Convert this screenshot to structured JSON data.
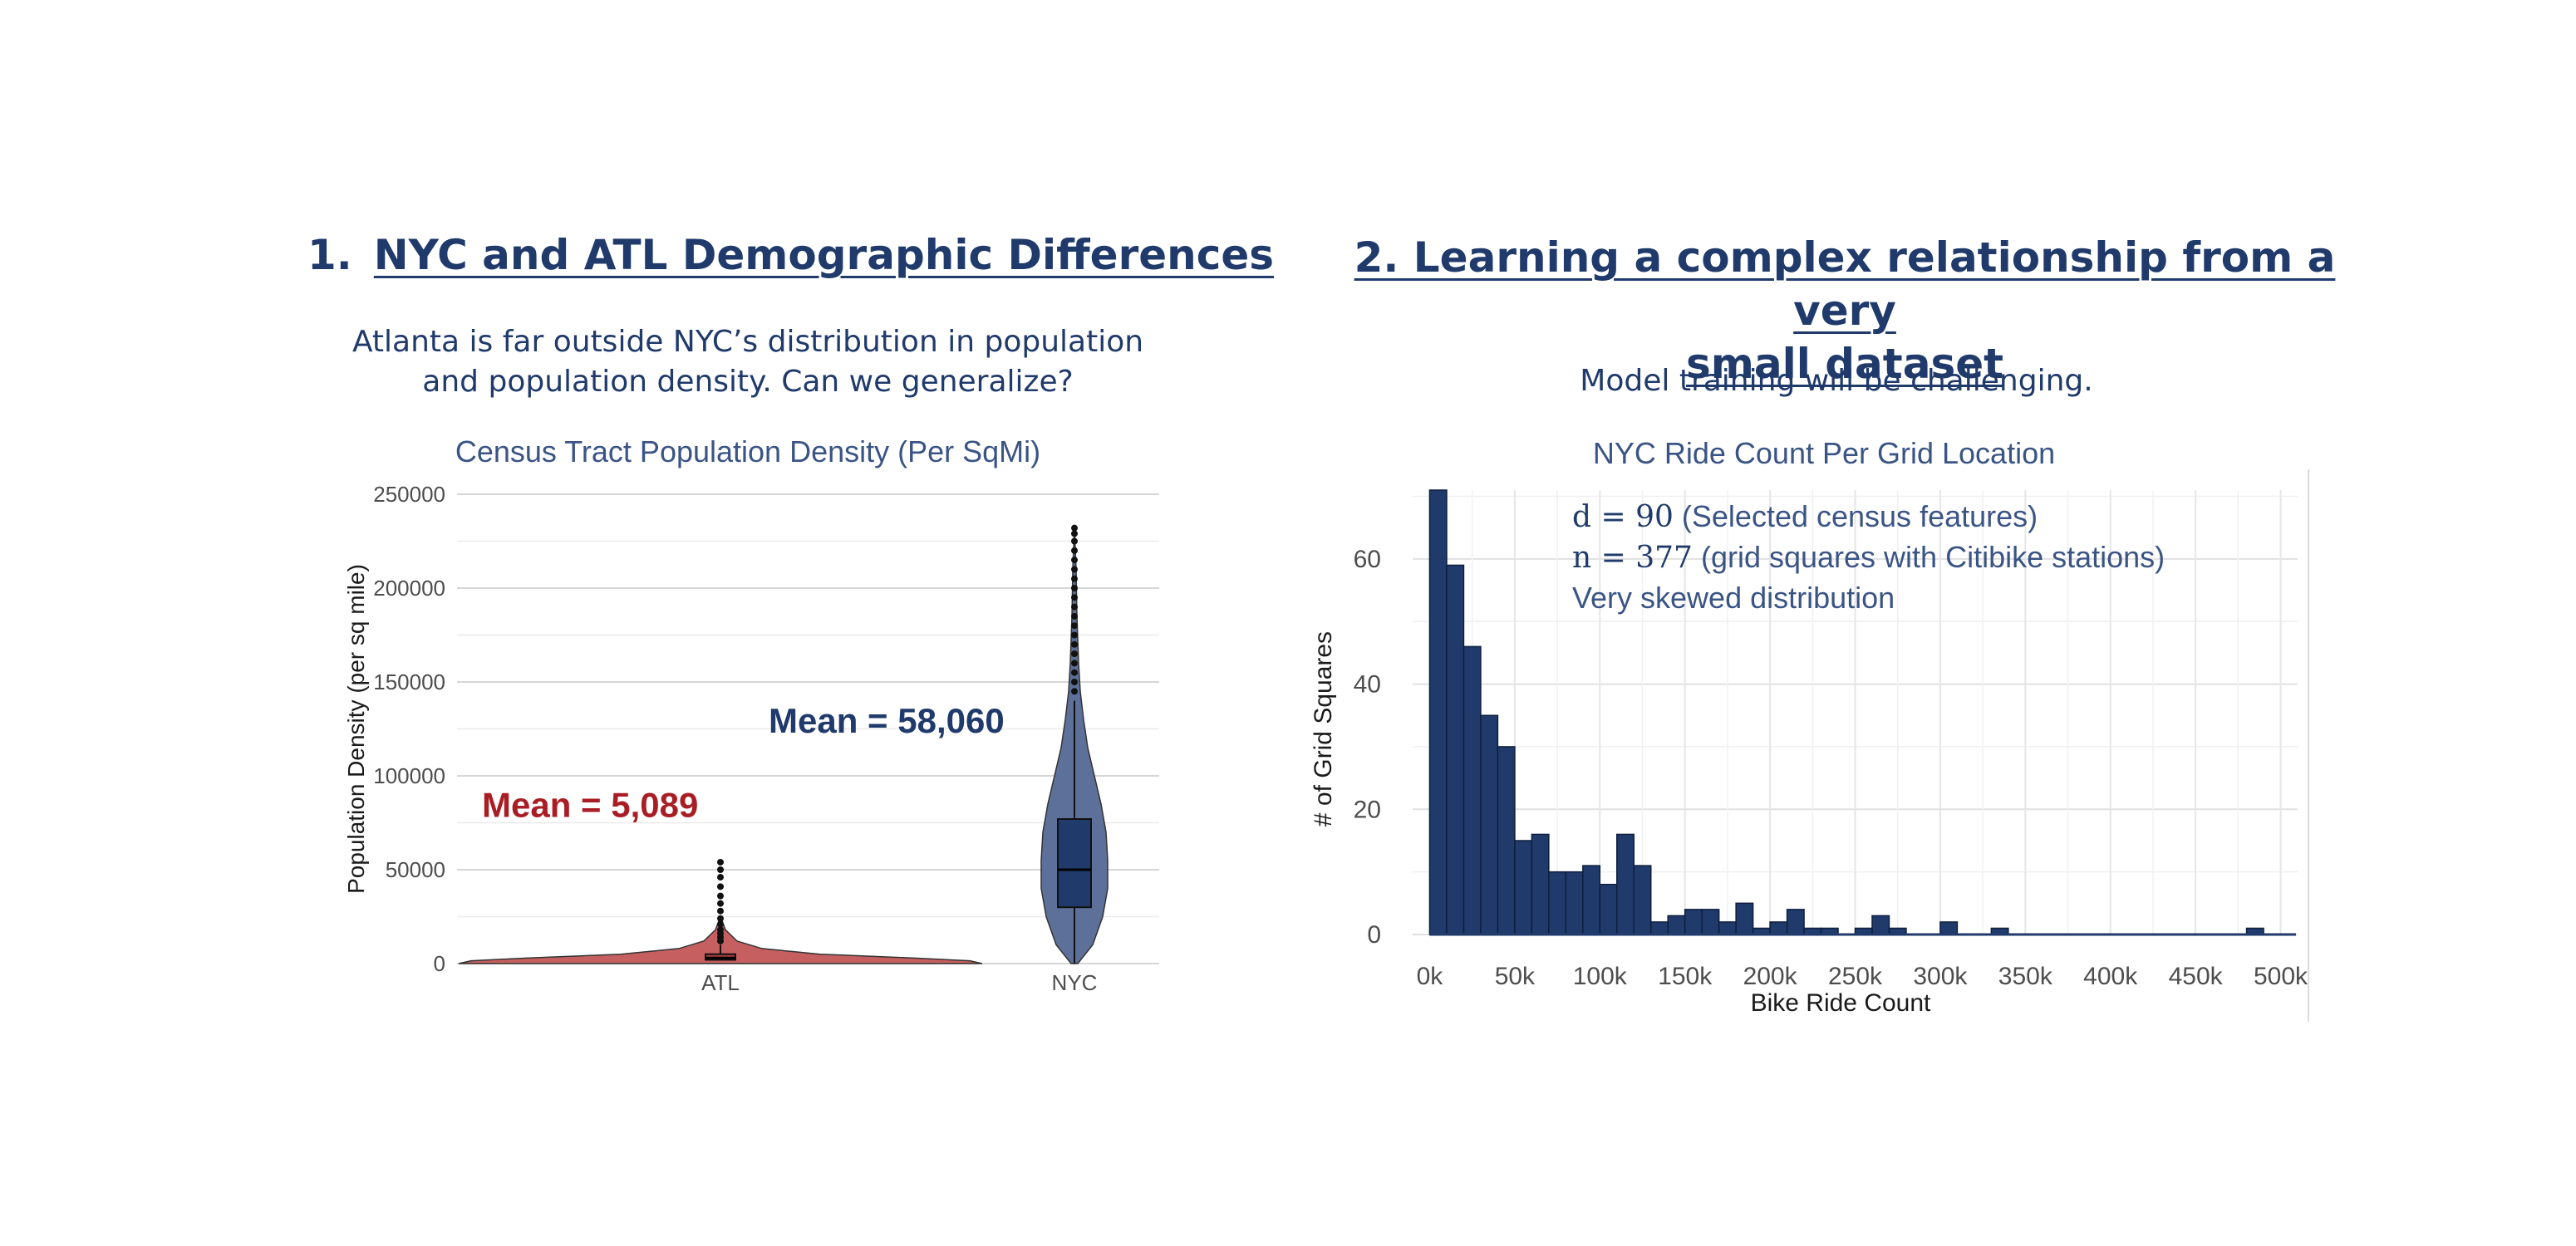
{
  "slide": {
    "left_heading_number": "1.",
    "left_heading": "NYC and ATL Demographic Differences",
    "left_subtitle_line1": "Atlanta is far outside NYC’s distribution in population",
    "left_subtitle_line2": "and population density. Can we generalize?",
    "right_heading_line1": "2. Learning a complex relationship from a very",
    "right_heading_line2": "small dataset",
    "right_subtitle": "Model training will be challenging.",
    "right_ann_d": "d = 90",
    "right_ann_d_text": " (Selected census features)",
    "right_ann_n": "n = 377",
    "right_ann_n_text": " (grid squares with Citibike stations)",
    "right_ann_skew": "Very skewed distribution"
  },
  "chart_data": [
    {
      "type": "violin",
      "title": "Census Tract Population Density (Per SqMi)",
      "xlabel": "",
      "ylabel": "Population Density (per sq mile)",
      "ylim": [
        0,
        250000
      ],
      "yticks": [
        0,
        50000,
        100000,
        150000,
        200000,
        250000
      ],
      "ytick_labels": [
        "0",
        "50000",
        "100000",
        "150000",
        "200000",
        "250000"
      ],
      "grid": true,
      "categories": [
        "ATL",
        "NYC"
      ],
      "series": [
        {
          "name": "ATL",
          "color": "#c0504d",
          "box": {
            "q1": 2000,
            "median": 3000,
            "q3": 5000,
            "whisker_high": 10000
          },
          "outliers": [
            12000,
            14000,
            16000,
            18000,
            21000,
            24000,
            28000,
            32000,
            36000,
            41000,
            46000,
            50000,
            54000
          ],
          "annotation": "Mean = 5,089"
        },
        {
          "name": "NYC",
          "color": "#1f3a6b",
          "box": {
            "q1": 30000,
            "median": 50000,
            "q3": 77000,
            "whisker_low": 0,
            "whisker_high": 140000
          },
          "outliers": [
            145000,
            150000,
            155000,
            160000,
            165000,
            170000,
            175000,
            180000,
            185000,
            190000,
            195000,
            200000,
            205000,
            210000,
            215000,
            220000,
            225000,
            229000,
            232000
          ],
          "annotation": "Mean = 58,060"
        }
      ]
    },
    {
      "type": "bar",
      "title": "NYC Ride Count Per Grid Location",
      "xlabel": "Bike Ride Count",
      "ylabel": "# of Grid Squares",
      "xlim": [
        -10000,
        510000
      ],
      "ylim": [
        0,
        71
      ],
      "bin_width": 10000,
      "xticks": [
        0,
        50000,
        100000,
        150000,
        200000,
        250000,
        300000,
        350000,
        400000,
        450000,
        500000
      ],
      "xtick_labels": [
        "0k",
        "50k",
        "100k",
        "150k",
        "200k",
        "250k",
        "300k",
        "350k",
        "400k",
        "450k",
        "500k"
      ],
      "yticks": [
        0,
        20,
        40,
        60
      ],
      "ytick_labels": [
        "0",
        "20",
        "40",
        "60"
      ],
      "grid": true,
      "color": "#1f3a6b",
      "bin_starts": [
        0,
        10000,
        20000,
        30000,
        40000,
        50000,
        60000,
        70000,
        80000,
        90000,
        100000,
        110000,
        120000,
        130000,
        140000,
        150000,
        160000,
        170000,
        180000,
        190000,
        200000,
        210000,
        220000,
        230000,
        240000,
        250000,
        260000,
        270000,
        280000,
        290000,
        300000,
        310000,
        320000,
        330000,
        340000,
        350000,
        360000,
        370000,
        380000,
        390000,
        400000,
        410000,
        420000,
        430000,
        440000,
        450000,
        460000,
        470000,
        480000
      ],
      "values": [
        71,
        59,
        46,
        35,
        30,
        15,
        16,
        10,
        10,
        11,
        8,
        16,
        11,
        2,
        3,
        4,
        4,
        2,
        5,
        1,
        2,
        4,
        1,
        1,
        0,
        1,
        3,
        1,
        0,
        0,
        2,
        0,
        0,
        1,
        0,
        0,
        0,
        0,
        0,
        0,
        0,
        0,
        0,
        0,
        0,
        0,
        0,
        0,
        1
      ]
    }
  ]
}
